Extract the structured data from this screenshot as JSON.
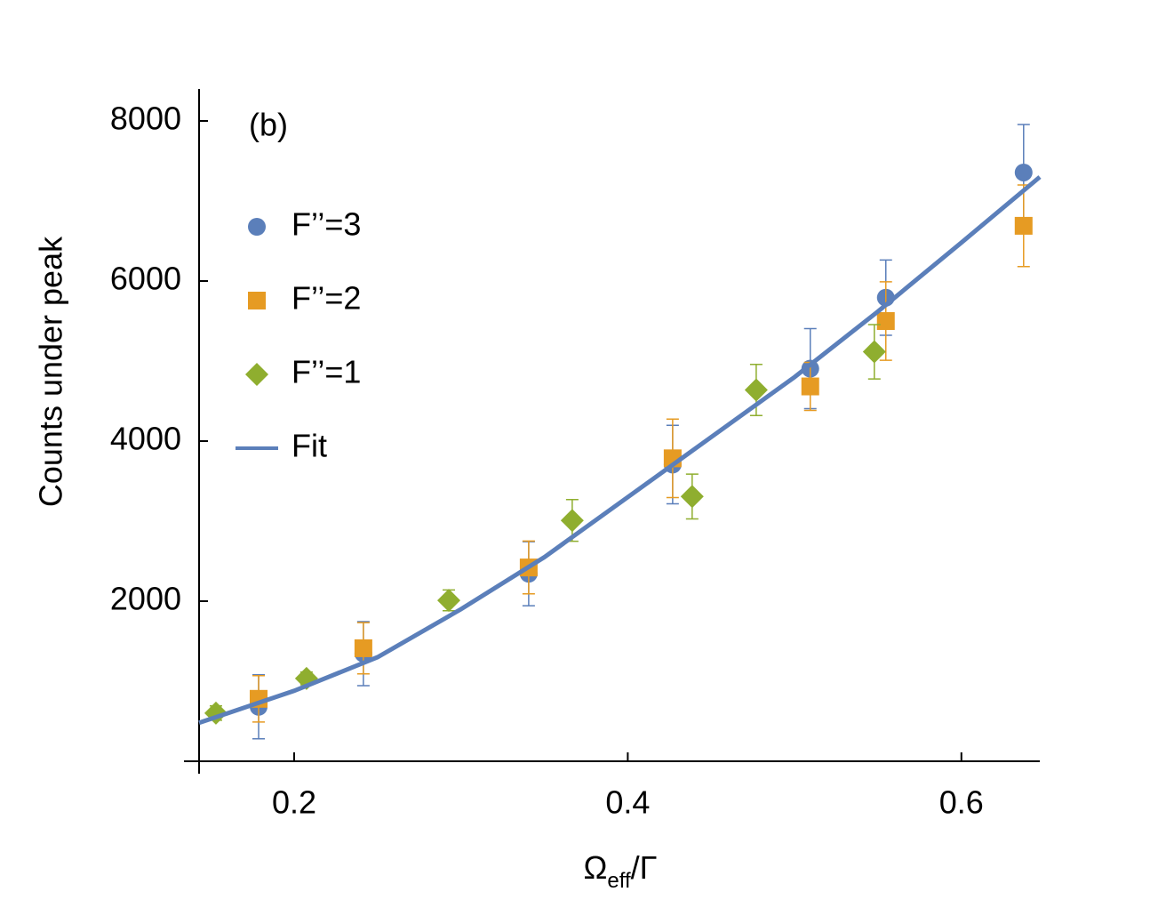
{
  "chart_data": {
    "type": "scatter",
    "annotation": "(b)",
    "y_label": "Counts under peak",
    "x_label": "Ω",
    "x_label_sub": "eff",
    "x_label_end": "/Γ",
    "xlim": [
      0.143,
      0.647
    ],
    "xticks": [
      0.2,
      0.4,
      0.6
    ],
    "ylim": [
      0,
      8400
    ],
    "yticks": [
      2000,
      4000,
      6000,
      8000
    ],
    "series": [
      {
        "name": "F’’=3",
        "color": "#5b7fba",
        "marker": "circle",
        "x": [
          0.1787,
          0.2415,
          0.3406,
          0.4269,
          0.5094,
          0.5547,
          0.6373
        ],
        "values": [
          680,
          1345,
          2343,
          3707,
          4905,
          5792,
          7356
        ],
        "errors": [
          400,
          400,
          400,
          490,
          500,
          470,
          600
        ]
      },
      {
        "name": "F’’=2",
        "color": "#e69b23",
        "marker": "square",
        "x": [
          0.1787,
          0.2415,
          0.3406,
          0.4269,
          0.5094,
          0.5547,
          0.6373
        ],
        "values": [
          780,
          1412,
          2421,
          3785,
          4683,
          5500,
          6690
        ],
        "errors": [
          290,
          320,
          330,
          490,
          300,
          490,
          510
        ]
      },
      {
        "name": "F’’=1",
        "color": "#8fae2f",
        "marker": "diamond",
        "x": [
          0.1531,
          0.2074,
          0.2927,
          0.3667,
          0.4386,
          0.477,
          0.5478
        ],
        "values": [
          602,
          1035,
          2010,
          3009,
          3308,
          4639,
          5116
        ],
        "errors": [
          90,
          80,
          130,
          260,
          280,
          320,
          340
        ]
      },
      {
        "name": "Fit",
        "color": "#5b7fba",
        "marker": "line",
        "x": [
          0.143,
          0.2,
          0.25,
          0.3,
          0.35,
          0.4,
          0.45,
          0.5,
          0.55,
          0.6,
          0.647
        ],
        "values": [
          480,
          880,
          1300,
          1900,
          2550,
          3300,
          4050,
          4800,
          5620,
          6480,
          7300
        ]
      }
    ]
  }
}
